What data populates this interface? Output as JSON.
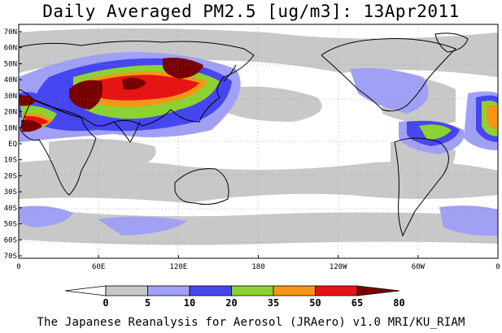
{
  "title": "Daily Averaged PM2.5 [ug/m3]: 13Apr2011",
  "credit": "The Japanese Reanalysis for Aerosol (JRAero) v1.0 MRI/KU_RIAM",
  "lat_labels": [
    "70N",
    "60N",
    "50N",
    "40N",
    "30N",
    "20N",
    "10N",
    "EQ",
    "10S",
    "20S",
    "30S",
    "40S",
    "50S",
    "60S",
    "70S"
  ],
  "lon_labels": [
    "0",
    "60E",
    "120E",
    "180",
    "120W",
    "60W",
    "0"
  ],
  "colorbar": {
    "labels": [
      "0",
      "5",
      "10",
      "20",
      "35",
      "50",
      "65",
      "80"
    ],
    "colors": [
      "#ffffff",
      "#c8c8c8",
      "#a0a0f5",
      "#4646f0",
      "#8cd232",
      "#f59614",
      "#e61414",
      "#780000"
    ]
  },
  "colors": {
    "land_outline": "#000000",
    "ocean": "#ffffff"
  }
}
